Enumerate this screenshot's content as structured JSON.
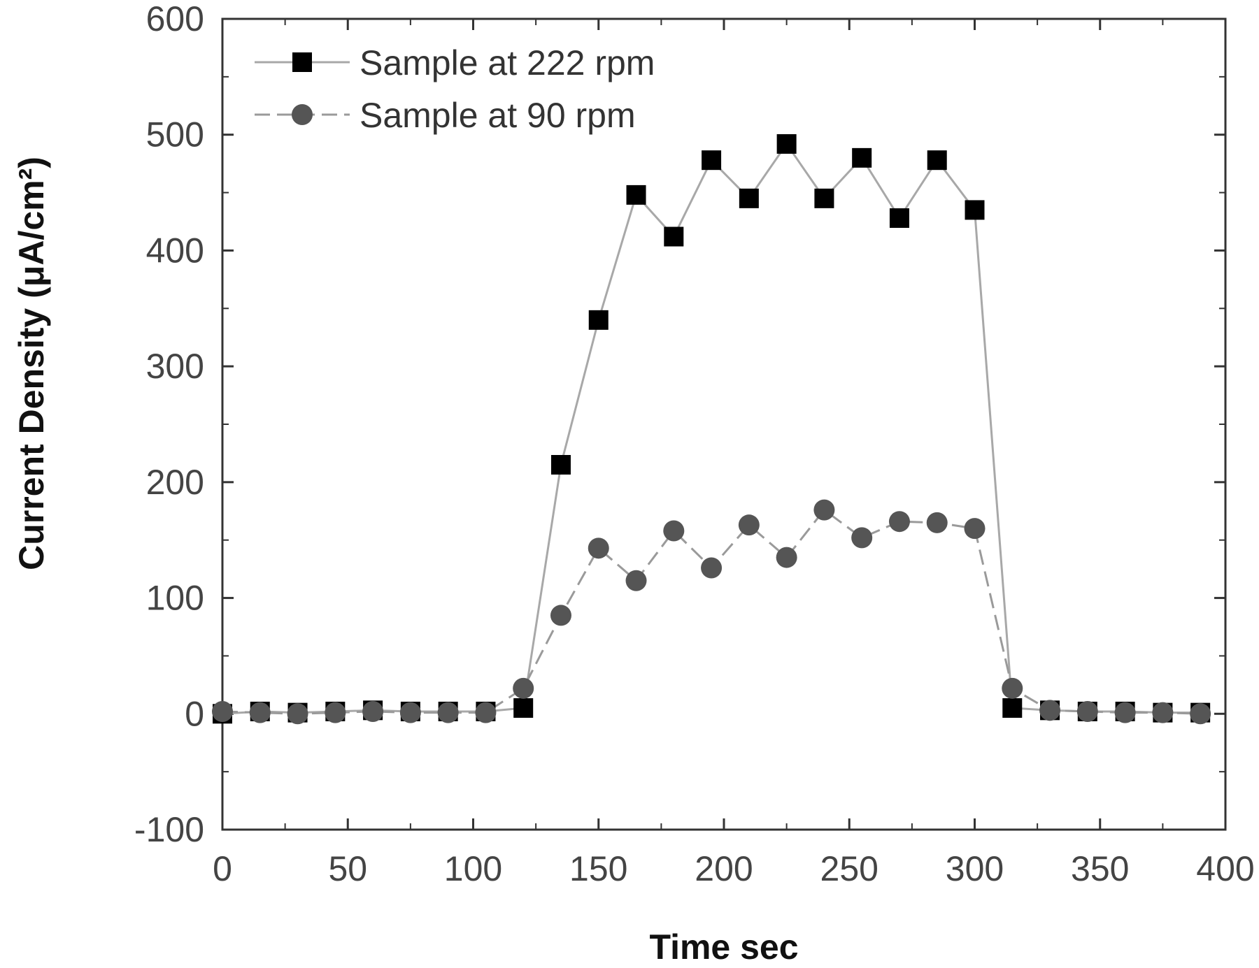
{
  "chart_data": {
    "type": "line",
    "title": "",
    "xlabel": "Time  sec",
    "ylabel": "Current Density  (μA/cm²)",
    "xlim": [
      0,
      400
    ],
    "ylim": [
      -100,
      600
    ],
    "x_ticks": [
      0,
      50,
      100,
      150,
      200,
      250,
      300,
      350,
      400
    ],
    "x_tick_labels": [
      "0",
      "50",
      "100",
      "150",
      "200",
      "250",
      "300",
      "350",
      "400"
    ],
    "y_ticks": [
      -100,
      0,
      100,
      200,
      300,
      400,
      500,
      600
    ],
    "y_tick_labels": [
      "-100",
      "0",
      "100",
      "200",
      "300",
      "400",
      "500",
      "600"
    ],
    "grid": false,
    "legend_position": "top-left",
    "series": [
      {
        "name": "Sample at 222 rpm",
        "marker": "square",
        "color": "#000000",
        "line_color": "#a8a8a8",
        "line_style": "solid",
        "x": [
          0,
          15,
          30,
          45,
          60,
          75,
          90,
          105,
          120,
          135,
          150,
          165,
          180,
          195,
          210,
          225,
          240,
          255,
          270,
          285,
          300,
          315,
          330,
          345,
          360,
          375,
          390
        ],
        "y": [
          0,
          2,
          1,
          2,
          3,
          2,
          2,
          2,
          5,
          215,
          340,
          448,
          412,
          478,
          445,
          492,
          445,
          480,
          428,
          478,
          435,
          5,
          3,
          2,
          2,
          1,
          1
        ]
      },
      {
        "name": "Sample at 90 rpm",
        "marker": "circle",
        "color": "#555555",
        "line_color": "#9a9a9a",
        "line_style": "dashed",
        "x": [
          0,
          15,
          30,
          45,
          60,
          75,
          90,
          105,
          120,
          135,
          150,
          165,
          180,
          195,
          210,
          225,
          240,
          255,
          270,
          285,
          300,
          315,
          330,
          345,
          360,
          375,
          390
        ],
        "y": [
          2,
          1,
          0,
          1,
          2,
          1,
          1,
          1,
          22,
          85,
          143,
          115,
          158,
          126,
          163,
          135,
          176,
          152,
          166,
          165,
          160,
          22,
          3,
          2,
          1,
          1,
          0
        ]
      }
    ]
  }
}
